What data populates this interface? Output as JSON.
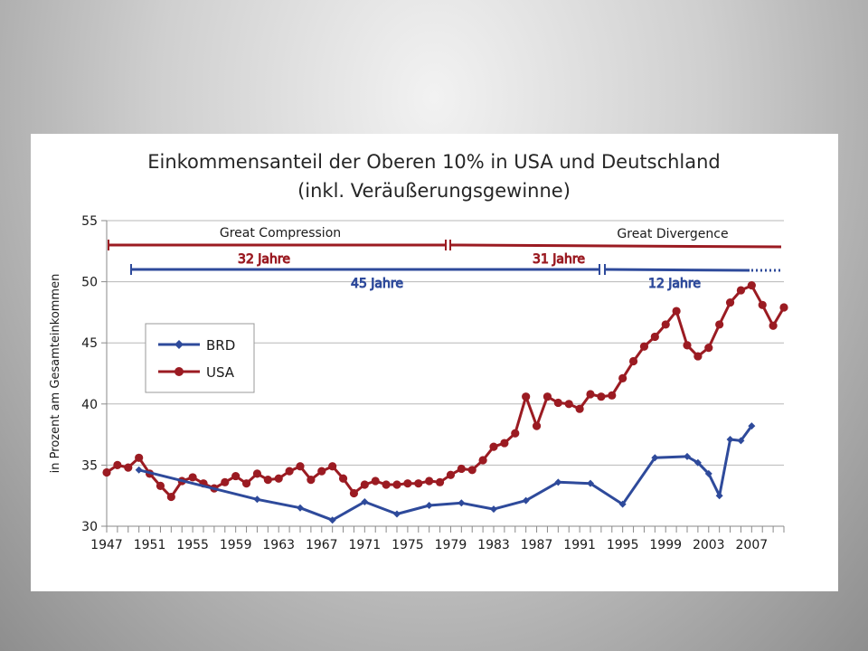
{
  "colors": {
    "usa": "#9b1b22",
    "brd": "#2e4a9b",
    "grid": "#b7b7b7"
  },
  "chart_data": {
    "type": "line",
    "title": "Einkommensanteil der Oberen 10% in USA und Deutschland",
    "subtitle": "(inkl. Veräußerungsgewinne)",
    "xlabel": "",
    "ylabel": "in Prozent am Gesamteinkommen",
    "xlim": [
      1947,
      2010
    ],
    "ylim": [
      30,
      55
    ],
    "yticks": [
      30,
      35,
      40,
      45,
      50,
      55
    ],
    "xticks": [
      "1947",
      "1951",
      "1955",
      "1959",
      "1963",
      "1967",
      "1971",
      "1975",
      "1979",
      "1983",
      "1987",
      "1991",
      "1995",
      "1999",
      "2003",
      "2007"
    ],
    "grid": "horizontal",
    "legend_position": "left",
    "series": [
      {
        "name": "BRD",
        "marker": "diamond",
        "x": [
          1950,
          1961,
          1965,
          1968,
          1971,
          1974,
          1977,
          1980,
          1983,
          1986,
          1989,
          1992,
          1995,
          1998,
          2001,
          2002,
          2003,
          2004,
          2005,
          2006,
          2007
        ],
        "y": [
          34.6,
          32.2,
          31.5,
          30.5,
          32.0,
          31.0,
          31.7,
          31.9,
          31.4,
          32.1,
          33.6,
          33.5,
          31.8,
          35.6,
          35.7,
          35.2,
          34.3,
          32.5,
          37.1,
          37.0,
          38.2
        ]
      },
      {
        "name": "USA",
        "marker": "circle",
        "x": [
          1947,
          1948,
          1949,
          1950,
          1951,
          1952,
          1953,
          1954,
          1955,
          1956,
          1957,
          1958,
          1959,
          1960,
          1961,
          1962,
          1963,
          1964,
          1965,
          1966,
          1967,
          1968,
          1969,
          1970,
          1971,
          1972,
          1973,
          1974,
          1975,
          1976,
          1977,
          1978,
          1979,
          1980,
          1981,
          1982,
          1983,
          1984,
          1985,
          1986,
          1987,
          1988,
          1989,
          1990,
          1991,
          1992,
          1993,
          1994,
          1995,
          1996,
          1997,
          1998,
          1999,
          2000,
          2001,
          2002,
          2003,
          2004,
          2005,
          2006,
          2007,
          2008,
          2009,
          2010
        ],
        "y": [
          34.4,
          35.0,
          34.8,
          35.6,
          34.3,
          33.3,
          32.4,
          33.7,
          34.0,
          33.5,
          33.1,
          33.6,
          34.1,
          33.5,
          34.3,
          33.8,
          33.9,
          34.5,
          34.9,
          33.8,
          34.5,
          34.9,
          33.9,
          32.7,
          33.4,
          33.7,
          33.4,
          33.4,
          33.5,
          33.5,
          33.7,
          33.6,
          34.2,
          34.7,
          34.6,
          35.4,
          36.5,
          36.8,
          37.6,
          40.6,
          38.2,
          40.6,
          40.1,
          40.0,
          39.6,
          40.8,
          40.6,
          40.7,
          42.1,
          43.5,
          44.7,
          45.5,
          46.5,
          47.6,
          44.8,
          43.9,
          44.6,
          46.5,
          48.3,
          49.3,
          49.7,
          48.1,
          46.4,
          47.9
        ]
      }
    ],
    "annotations": {
      "great_compression": "Great Compression",
      "great_divergence": "Great Divergence",
      "usa_period_1": "32 Jahre",
      "usa_period_2": "31 Jahre",
      "brd_period_1": "45 Jahre",
      "brd_period_2": "12 Jahre"
    }
  }
}
